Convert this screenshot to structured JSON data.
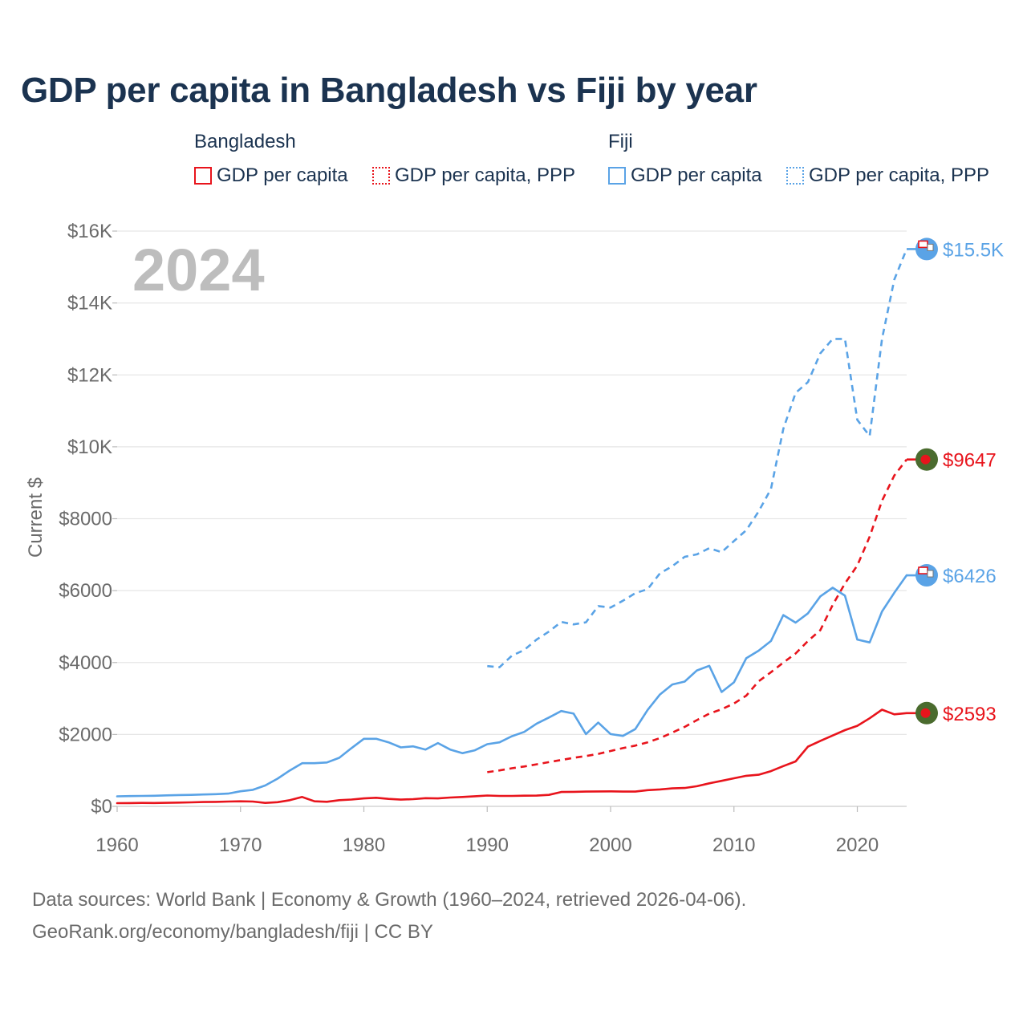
{
  "page": {
    "title": "GDP per capita in Bangladesh vs Fiji by year",
    "footer_line1": "Data sources: World Bank | Economy & Growth (1960–2024, retrieved 2026-04-06).",
    "footer_line2": "GeoRank.org/economy/bangladesh/fiji | CC BY"
  },
  "legend": {
    "groups": [
      {
        "name": "Bangladesh",
        "color": "#e8141c",
        "items": [
          "GDP per capita",
          "GDP per capita, PPP"
        ]
      },
      {
        "name": "Fiji",
        "color": "#5aa3e6",
        "items": [
          "GDP per capita",
          "GDP per capita, PPP"
        ]
      }
    ]
  },
  "colors": {
    "bangladesh": "#e8141c",
    "fiji": "#5aa3e6",
    "flag_bangladesh_green": "#4a6b2e",
    "flag_bangladesh_red": "#e8141c",
    "grid": "#e6e6e6",
    "axis_text": "#6b6b6b",
    "year_watermark": "#bdbdbd"
  },
  "chart_data": {
    "type": "line",
    "title": "GDP per capita in Bangladesh vs Fiji by year",
    "ylabel": "Current $",
    "xlabel": "",
    "xlim": [
      1960,
      2024
    ],
    "ylim": [
      0,
      16000
    ],
    "x_ticks": [
      "1960",
      "1970",
      "1980",
      "1990",
      "2000",
      "2010",
      "2020"
    ],
    "y_ticks": [
      "$0",
      "$2000",
      "$4000",
      "$6000",
      "$8000",
      "$10K",
      "$12K",
      "$14K",
      "$16K"
    ],
    "y_tick_values": [
      0,
      2000,
      4000,
      6000,
      8000,
      10000,
      12000,
      14000,
      16000
    ],
    "year_label": "2024",
    "legend_position": "top",
    "series": [
      {
        "name": "Bangladesh GDP per capita",
        "country": "bangladesh",
        "style": "solid",
        "end_label": "$2593",
        "x": [
          1960,
          1961,
          1962,
          1963,
          1964,
          1965,
          1966,
          1967,
          1968,
          1969,
          1970,
          1971,
          1972,
          1973,
          1974,
          1975,
          1976,
          1977,
          1978,
          1979,
          1980,
          1981,
          1982,
          1983,
          1984,
          1985,
          1986,
          1987,
          1988,
          1989,
          1990,
          1991,
          1992,
          1993,
          1994,
          1995,
          1996,
          1997,
          1998,
          1999,
          2000,
          2001,
          2002,
          2003,
          2004,
          2005,
          2006,
          2007,
          2008,
          2009,
          2010,
          2011,
          2012,
          2013,
          2014,
          2015,
          2016,
          2017,
          2018,
          2019,
          2020,
          2021,
          2022,
          2023,
          2024
        ],
        "values": [
          89,
          92,
          95,
          93,
          99,
          105,
          112,
          121,
          124,
          134,
          140,
          134,
          96,
          115,
          172,
          260,
          140,
          128,
          171,
          190,
          220,
          238,
          207,
          187,
          200,
          228,
          221,
          246,
          260,
          282,
          302,
          290,
          290,
          297,
          300,
          320,
          400,
          405,
          410,
          415,
          418,
          410,
          410,
          450,
          470,
          500,
          510,
          560,
          640,
          710,
          780,
          850,
          880,
          980,
          1120,
          1250,
          1660,
          1820,
          1970,
          2120,
          2240,
          2450,
          2690,
          2560,
          2593
        ]
      },
      {
        "name": "Bangladesh GDP per capita, PPP",
        "country": "bangladesh",
        "style": "dashed",
        "end_label": "$9647",
        "x": [
          1990,
          1991,
          1992,
          1993,
          1994,
          1995,
          1996,
          1997,
          1998,
          1999,
          2000,
          2001,
          2002,
          2003,
          2004,
          2005,
          2006,
          2007,
          2008,
          2009,
          2010,
          2011,
          2012,
          2013,
          2014,
          2015,
          2016,
          2017,
          2018,
          2019,
          2020,
          2021,
          2022,
          2023,
          2024
        ],
        "values": [
          950,
          1000,
          1060,
          1110,
          1170,
          1230,
          1290,
          1350,
          1400,
          1460,
          1540,
          1620,
          1690,
          1780,
          1900,
          2050,
          2210,
          2400,
          2580,
          2700,
          2860,
          3080,
          3480,
          3730,
          4000,
          4250,
          4600,
          4900,
          5600,
          6200,
          6700,
          7500,
          8500,
          9200,
          9647
        ]
      },
      {
        "name": "Fiji GDP per capita",
        "country": "fiji",
        "style": "solid",
        "end_label": "$6426",
        "x": [
          1960,
          1961,
          1962,
          1963,
          1964,
          1965,
          1966,
          1967,
          1968,
          1969,
          1970,
          1971,
          1972,
          1973,
          1974,
          1975,
          1976,
          1977,
          1978,
          1979,
          1980,
          1981,
          1982,
          1983,
          1984,
          1985,
          1986,
          1987,
          1988,
          1989,
          1990,
          1991,
          1992,
          1993,
          1994,
          1995,
          1996,
          1997,
          1998,
          1999,
          2000,
          2001,
          2002,
          2003,
          2004,
          2005,
          2006,
          2007,
          2008,
          2009,
          2010,
          2011,
          2012,
          2013,
          2014,
          2015,
          2016,
          2017,
          2018,
          2019,
          2020,
          2021,
          2022,
          2023,
          2024
        ],
        "values": [
          280,
          285,
          290,
          295,
          305,
          315,
          320,
          330,
          340,
          355,
          420,
          460,
          580,
          770,
          1000,
          1200,
          1200,
          1220,
          1350,
          1620,
          1880,
          1880,
          1780,
          1640,
          1670,
          1580,
          1760,
          1580,
          1480,
          1560,
          1730,
          1780,
          1950,
          2070,
          2300,
          2470,
          2650,
          2580,
          2010,
          2330,
          2010,
          1960,
          2150,
          2680,
          3110,
          3390,
          3470,
          3780,
          3910,
          3180,
          3450,
          4120,
          4330,
          4600,
          5320,
          5110,
          5370,
          5840,
          6080,
          5860,
          4640,
          4560,
          5420,
          5940,
          6426
        ]
      },
      {
        "name": "Fiji GDP per capita, PPP",
        "country": "fiji",
        "style": "dashed",
        "end_label": "$15.5K",
        "x": [
          1990,
          1991,
          1992,
          1993,
          1994,
          1995,
          1996,
          1997,
          1998,
          1999,
          2000,
          2001,
          2002,
          2003,
          2004,
          2005,
          2006,
          2007,
          2008,
          2009,
          2010,
          2011,
          2012,
          2013,
          2014,
          2015,
          2016,
          2017,
          2018,
          2019,
          2020,
          2021,
          2022,
          2023,
          2024
        ],
        "values": [
          3900,
          3870,
          4190,
          4350,
          4640,
          4860,
          5130,
          5060,
          5120,
          5570,
          5530,
          5720,
          5930,
          6040,
          6480,
          6680,
          6940,
          7010,
          7180,
          7070,
          7380,
          7680,
          8200,
          8830,
          10500,
          11500,
          11800,
          12600,
          13000,
          13000,
          10750,
          10300,
          13000,
          14650,
          15500
        ]
      }
    ]
  }
}
